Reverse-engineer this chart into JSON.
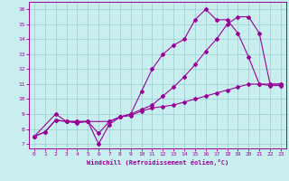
{
  "xlabel": "Windchill (Refroidissement éolien,°C)",
  "xlim": [
    -0.5,
    23.5
  ],
  "ylim": [
    6.7,
    16.5
  ],
  "yticks": [
    7,
    8,
    9,
    10,
    11,
    12,
    13,
    14,
    15,
    16
  ],
  "xticks": [
    0,
    1,
    2,
    3,
    4,
    5,
    6,
    7,
    8,
    9,
    10,
    11,
    12,
    13,
    14,
    15,
    16,
    17,
    18,
    19,
    20,
    21,
    22,
    23
  ],
  "bg_color": "#c8eef0",
  "line_color": "#990099",
  "grid_color": "#99cccc",
  "lines": [
    {
      "x": [
        0,
        1,
        2,
        3,
        4,
        5,
        6,
        7,
        8,
        9,
        10,
        11,
        12,
        13,
        14,
        15,
        16,
        17,
        18,
        19,
        20,
        21,
        22,
        23
      ],
      "y": [
        7.5,
        7.8,
        8.6,
        8.5,
        8.4,
        8.5,
        7.0,
        8.3,
        8.8,
        9.0,
        10.5,
        12.0,
        13.0,
        13.6,
        14.0,
        15.3,
        16.0,
        15.3,
        15.3,
        14.4,
        12.8,
        11.0,
        10.9,
        10.9
      ]
    },
    {
      "x": [
        0,
        2,
        3,
        4,
        5,
        7,
        8,
        9,
        10,
        11,
        12,
        13,
        14,
        15,
        16,
        17,
        18,
        19,
        20,
        21,
        22,
        23
      ],
      "y": [
        7.5,
        9.0,
        8.5,
        8.5,
        8.5,
        8.5,
        8.8,
        9.0,
        9.3,
        9.6,
        10.2,
        10.8,
        11.5,
        12.3,
        13.2,
        14.0,
        15.0,
        15.5,
        15.5,
        14.4,
        11.0,
        11.0
      ]
    },
    {
      "x": [
        0,
        1,
        2,
        3,
        4,
        5,
        6,
        7,
        8,
        9,
        10,
        11,
        12,
        13,
        14,
        15,
        16,
        17,
        18,
        19,
        20,
        21,
        22,
        23
      ],
      "y": [
        7.5,
        7.8,
        8.6,
        8.5,
        8.5,
        8.5,
        7.7,
        8.5,
        8.8,
        8.9,
        9.2,
        9.4,
        9.5,
        9.6,
        9.8,
        10.0,
        10.2,
        10.4,
        10.6,
        10.8,
        11.0,
        11.0,
        11.0,
        11.0
      ]
    }
  ]
}
